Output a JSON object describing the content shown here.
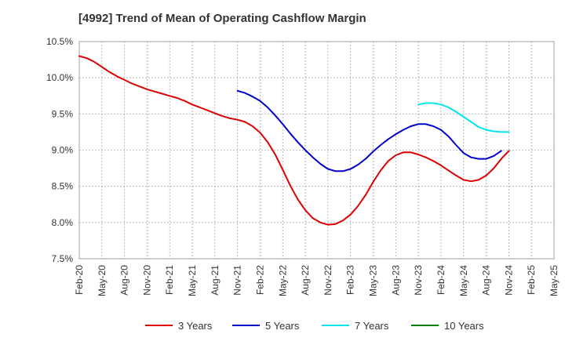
{
  "chart_data": {
    "type": "line",
    "title": "[4992]  Trend of Mean of Operating Cashflow Margin",
    "xlabel": "",
    "ylabel": "",
    "ylim": [
      7.5,
      10.5
    ],
    "yticks": [
      7.5,
      8.0,
      8.5,
      9.0,
      9.5,
      10.0,
      10.5
    ],
    "ytick_labels": [
      "7.5%",
      "8.0%",
      "8.5%",
      "9.0%",
      "9.5%",
      "10.0%",
      "10.5%"
    ],
    "xticks": [
      "Feb-20",
      "May-20",
      "Aug-20",
      "Nov-20",
      "Feb-21",
      "May-21",
      "Aug-21",
      "Nov-21",
      "Feb-22",
      "May-22",
      "Aug-22",
      "Nov-22",
      "Feb-23",
      "May-23",
      "Aug-23",
      "Nov-23",
      "Feb-24",
      "May-24",
      "Aug-24",
      "Nov-24",
      "Feb-25",
      "May-25"
    ],
    "x_start": "Feb-20",
    "x_end": "May-25",
    "grid": true,
    "legend_position": "bottom",
    "series": [
      {
        "name": "3 Years",
        "color": "#dd0000",
        "start_month_index": 0,
        "values": [
          10.3,
          10.27,
          10.22,
          10.15,
          10.08,
          10.02,
          9.97,
          9.92,
          9.88,
          9.84,
          9.81,
          9.78,
          9.75,
          9.72,
          9.68,
          9.63,
          9.59,
          9.55,
          9.51,
          9.47,
          9.44,
          9.42,
          9.39,
          9.33,
          9.24,
          9.11,
          8.94,
          8.73,
          8.51,
          8.32,
          8.17,
          8.06,
          8.0,
          7.97,
          7.98,
          8.03,
          8.11,
          8.23,
          8.38,
          8.56,
          8.72,
          8.85,
          8.93,
          8.97,
          8.97,
          8.94,
          8.9,
          8.85,
          8.79,
          8.72,
          8.65,
          8.59,
          8.57,
          8.59,
          8.65,
          8.75,
          8.88,
          8.99
        ]
      },
      {
        "name": "5 Years",
        "color": "#0000cc",
        "start_month_index": 21,
        "values": [
          9.82,
          9.79,
          9.74,
          9.68,
          9.59,
          9.48,
          9.36,
          9.23,
          9.11,
          9.0,
          8.9,
          8.81,
          8.74,
          8.71,
          8.71,
          8.74,
          8.8,
          8.88,
          8.98,
          9.07,
          9.15,
          9.22,
          9.28,
          9.33,
          9.36,
          9.36,
          9.33,
          9.28,
          9.19,
          9.07,
          8.96,
          8.9,
          8.88,
          8.88,
          8.92,
          8.99
        ]
      },
      {
        "name": "7 Years",
        "color": "#00e5ee",
        "start_month_index": 45,
        "values": [
          9.63,
          9.65,
          9.65,
          9.63,
          9.59,
          9.53,
          9.46,
          9.39,
          9.32,
          9.28,
          9.26,
          9.25,
          9.25
        ]
      },
      {
        "name": "10 Years",
        "color": "#008000",
        "start_month_index": 0,
        "values": []
      }
    ]
  }
}
